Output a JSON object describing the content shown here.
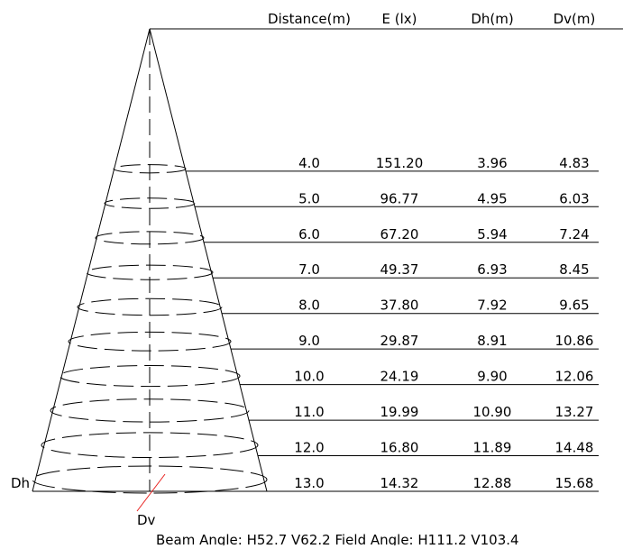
{
  "headers": {
    "distance": "Distance(m)",
    "illuminance": "E (lx)",
    "dh": "Dh(m)",
    "dv": "Dv(m)"
  },
  "rows": [
    {
      "distance": "4.0",
      "e": "151.20",
      "dh": "3.96",
      "dv": "4.83"
    },
    {
      "distance": "5.0",
      "e": "96.77",
      "dh": "4.95",
      "dv": "6.03"
    },
    {
      "distance": "6.0",
      "e": "67.20",
      "dh": "5.94",
      "dv": "7.24"
    },
    {
      "distance": "7.0",
      "e": "49.37",
      "dh": "6.93",
      "dv": "8.45"
    },
    {
      "distance": "8.0",
      "e": "37.80",
      "dh": "7.92",
      "dv": "9.65"
    },
    {
      "distance": "9.0",
      "e": "29.87",
      "dh": "8.91",
      "dv": "10.86"
    },
    {
      "distance": "10.0",
      "e": "24.19",
      "dh": "9.90",
      "dv": "12.06"
    },
    {
      "distance": "11.0",
      "e": "19.99",
      "dh": "10.90",
      "dv": "13.27"
    },
    {
      "distance": "12.0",
      "e": "16.80",
      "dh": "11.89",
      "dv": "14.48"
    },
    {
      "distance": "13.0",
      "e": "14.32",
      "dh": "12.88",
      "dv": "15.68"
    }
  ],
  "labels": {
    "dh": "Dh",
    "dv": "Dv"
  },
  "footer": "Beam Angle: H52.7 V62.2  Field Angle: H111.2 V103.4",
  "colors": {
    "line": "#000000",
    "dv_marker": "#e8201e"
  }
}
